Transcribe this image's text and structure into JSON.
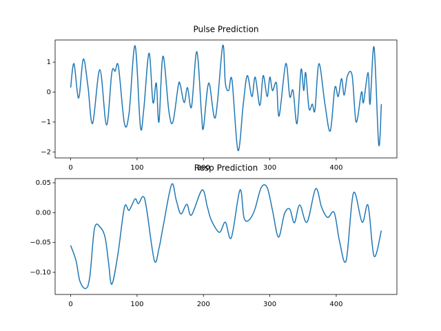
{
  "chart_data": [
    {
      "type": "line",
      "title": "Pulse Prediction",
      "color": "#1f77b4",
      "x": [
        0,
        5,
        12,
        19,
        26,
        33,
        44,
        54,
        62,
        67,
        72,
        81,
        88,
        97,
        105,
        110,
        118,
        124,
        129,
        133,
        139,
        148,
        154,
        162,
        165,
        171,
        176,
        182,
        190,
        197,
        200,
        208,
        218,
        229,
        233,
        238,
        243,
        252,
        260,
        266,
        273,
        278,
        285,
        290,
        296,
        300,
        304,
        310,
        314,
        324,
        330,
        335,
        341,
        347,
        351,
        354,
        359,
        364,
        368,
        374,
        383,
        391,
        398,
        403,
        408,
        412,
        417,
        424,
        430,
        438,
        441,
        448,
        451,
        457,
        464,
        468
      ],
      "values": [
        0.15,
        0.95,
        -0.2,
        1.1,
        0.2,
        -1.05,
        0.75,
        -1.1,
        0.65,
        0.7,
        0.85,
        -1.05,
        -0.7,
        1.55,
        -1.15,
        -0.6,
        1.3,
        -0.35,
        0.3,
        -1.0,
        1.2,
        -0.65,
        -1.0,
        0.2,
        0.25,
        -0.35,
        0.15,
        -0.5,
        1.35,
        -0.7,
        -1.2,
        0.3,
        -0.85,
        1.55,
        0.3,
        0.05,
        0.4,
        -1.95,
        -0.4,
        0.55,
        -0.15,
        0.5,
        -0.45,
        0.55,
        -0.15,
        0.5,
        0.05,
        0.3,
        -0.8,
        0.95,
        -0.15,
        0.05,
        -1.05,
        0.75,
        0.05,
        0.65,
        -0.55,
        -0.4,
        -0.6,
        0.95,
        -0.4,
        -1.3,
        0.15,
        -0.15,
        0.45,
        -0.1,
        0.55,
        0.55,
        -1.0,
        0.0,
        -0.35,
        0.65,
        -0.4,
        1.5,
        -1.75,
        -0.4
      ],
      "xlim": [
        -23.4,
        491.4
      ],
      "ylim": [
        -2.2,
        1.74
      ],
      "xticks": [
        0,
        100,
        200,
        300,
        400
      ],
      "yticks": [
        {
          "value": -2,
          "label": "−2"
        },
        {
          "value": -1,
          "label": "−1"
        },
        0,
        1
      ]
    },
    {
      "type": "line",
      "title": "Resp Prediction",
      "color": "#1f77b4",
      "x": [
        0,
        8,
        14,
        23,
        29,
        36,
        45,
        52,
        57,
        62,
        71,
        81,
        88,
        97,
        102,
        109,
        114,
        126,
        133,
        139,
        152,
        159,
        166,
        175,
        182,
        198,
        206,
        212,
        224,
        233,
        242,
        255,
        261,
        268,
        277,
        287,
        296,
        304,
        313,
        322,
        330,
        337,
        345,
        356,
        369,
        378,
        387,
        397,
        405,
        415,
        426,
        439,
        448,
        457,
        468
      ],
      "values": [
        -0.055,
        -0.08,
        -0.115,
        -0.127,
        -0.106,
        -0.026,
        -0.025,
        -0.042,
        -0.083,
        -0.12,
        -0.071,
        0.009,
        0.004,
        0.023,
        0.015,
        0.027,
        0.009,
        -0.08,
        -0.06,
        -0.025,
        0.047,
        0.021,
        -0.002,
        0.014,
        -0.004,
        0.038,
        0.009,
        -0.013,
        -0.033,
        -0.016,
        -0.042,
        0.038,
        -0.008,
        -0.013,
        0.004,
        0.042,
        0.042,
        0.004,
        -0.041,
        -0.002,
        0.006,
        -0.017,
        0.013,
        -0.016,
        0.04,
        0.009,
        -0.008,
        0.0,
        -0.048,
        -0.08,
        0.033,
        -0.016,
        0.012,
        -0.073,
        -0.03
      ],
      "xlim": [
        -23.4,
        491.4
      ],
      "ylim": [
        -0.137,
        0.057
      ],
      "xticks": [
        0,
        100,
        200,
        300,
        400
      ],
      "yticks": [
        {
          "value": -0.1,
          "label": "−0.10"
        },
        {
          "value": -0.05,
          "label": "−0.05"
        },
        {
          "value": 0,
          "label": "0.00"
        },
        {
          "value": 0.05,
          "label": "0.05"
        }
      ]
    }
  ]
}
